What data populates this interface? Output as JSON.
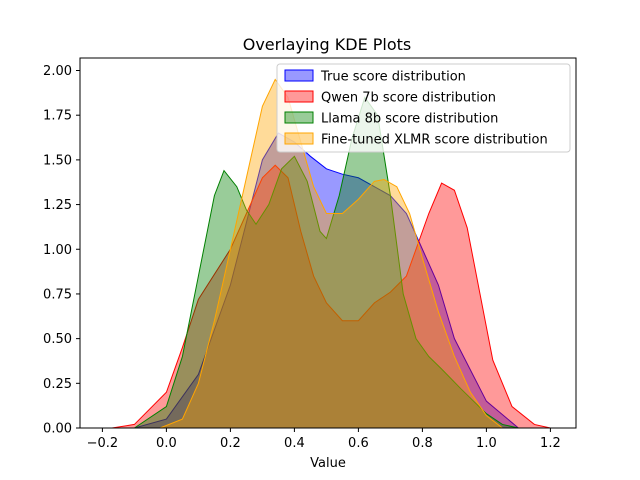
{
  "chart_data": {
    "type": "area",
    "title": "Overlaying KDE Plots",
    "xlabel": "Value",
    "ylabel": "",
    "xlim": [
      -0.27,
      1.28
    ],
    "ylim": [
      0,
      2.07
    ],
    "xticks": [
      "−0.2",
      "0.0",
      "0.2",
      "0.4",
      "0.6",
      "0.8",
      "1.0",
      "1.2"
    ],
    "xtick_values": [
      -0.2,
      0.0,
      0.2,
      0.4,
      0.6,
      0.8,
      1.0,
      1.2
    ],
    "yticks": [
      "0.00",
      "0.25",
      "0.50",
      "0.75",
      "1.00",
      "1.25",
      "1.50",
      "1.75",
      "2.00"
    ],
    "ytick_values": [
      0,
      0.25,
      0.5,
      0.75,
      1.0,
      1.25,
      1.5,
      1.75,
      2.0
    ],
    "grid": false,
    "legend_position": "top-right",
    "series": [
      {
        "name": "True score distribution",
        "fill": "#0000ff",
        "edge": "#0000ff",
        "points": [
          [
            -0.1,
            0
          ],
          [
            0,
            0.05
          ],
          [
            0.1,
            0.3
          ],
          [
            0.2,
            0.8
          ],
          [
            0.25,
            1.15
          ],
          [
            0.3,
            1.5
          ],
          [
            0.35,
            1.65
          ],
          [
            0.4,
            1.6
          ],
          [
            0.45,
            1.52
          ],
          [
            0.5,
            1.45
          ],
          [
            0.55,
            1.42
          ],
          [
            0.6,
            1.4
          ],
          [
            0.65,
            1.35
          ],
          [
            0.7,
            1.3
          ],
          [
            0.75,
            1.2
          ],
          [
            0.8,
            1.0
          ],
          [
            0.85,
            0.8
          ],
          [
            0.9,
            0.5
          ],
          [
            1.0,
            0.15
          ],
          [
            1.1,
            0
          ]
        ]
      },
      {
        "name": "Qwen 7b score distribution",
        "fill": "#ff0000",
        "edge": "#ff0000",
        "points": [
          [
            -0.17,
            0
          ],
          [
            -0.1,
            0.02
          ],
          [
            0,
            0.2
          ],
          [
            0.05,
            0.45
          ],
          [
            0.1,
            0.72
          ],
          [
            0.2,
            1.0
          ],
          [
            0.25,
            1.2
          ],
          [
            0.3,
            1.4
          ],
          [
            0.34,
            1.47
          ],
          [
            0.38,
            1.4
          ],
          [
            0.42,
            1.1
          ],
          [
            0.46,
            0.85
          ],
          [
            0.5,
            0.7
          ],
          [
            0.55,
            0.6
          ],
          [
            0.6,
            0.6
          ],
          [
            0.65,
            0.7
          ],
          [
            0.7,
            0.76
          ],
          [
            0.75,
            0.85
          ],
          [
            0.78,
            1.0
          ],
          [
            0.82,
            1.2
          ],
          [
            0.86,
            1.37
          ],
          [
            0.9,
            1.33
          ],
          [
            0.94,
            1.12
          ],
          [
            0.98,
            0.75
          ],
          [
            1.02,
            0.38
          ],
          [
            1.08,
            0.12
          ],
          [
            1.15,
            0.02
          ],
          [
            1.2,
            0
          ]
        ]
      },
      {
        "name": "Llama 8b score distribution",
        "fill": "#008000",
        "edge": "#008000",
        "points": [
          [
            -0.1,
            0
          ],
          [
            0,
            0.12
          ],
          [
            0.05,
            0.4
          ],
          [
            0.1,
            0.85
          ],
          [
            0.15,
            1.3
          ],
          [
            0.18,
            1.44
          ],
          [
            0.22,
            1.35
          ],
          [
            0.25,
            1.22
          ],
          [
            0.28,
            1.14
          ],
          [
            0.32,
            1.25
          ],
          [
            0.36,
            1.45
          ],
          [
            0.4,
            1.52
          ],
          [
            0.44,
            1.38
          ],
          [
            0.48,
            1.1
          ],
          [
            0.5,
            1.06
          ],
          [
            0.54,
            1.3
          ],
          [
            0.58,
            1.62
          ],
          [
            0.62,
            1.85
          ],
          [
            0.66,
            1.75
          ],
          [
            0.7,
            1.3
          ],
          [
            0.74,
            0.75
          ],
          [
            0.78,
            0.5
          ],
          [
            0.82,
            0.4
          ],
          [
            0.86,
            0.33
          ],
          [
            0.92,
            0.22
          ],
          [
            1.0,
            0.08
          ],
          [
            1.05,
            0.02
          ],
          [
            1.1,
            0
          ]
        ]
      },
      {
        "name": "Fine-tuned XLMR score distribution",
        "fill": "#ffa500",
        "edge": "#ffa500",
        "points": [
          [
            -0.02,
            0
          ],
          [
            0.05,
            0.05
          ],
          [
            0.1,
            0.25
          ],
          [
            0.15,
            0.6
          ],
          [
            0.2,
            1.0
          ],
          [
            0.25,
            1.4
          ],
          [
            0.3,
            1.8
          ],
          [
            0.34,
            1.95
          ],
          [
            0.38,
            1.85
          ],
          [
            0.42,
            1.6
          ],
          [
            0.46,
            1.35
          ],
          [
            0.5,
            1.2
          ],
          [
            0.55,
            1.2
          ],
          [
            0.6,
            1.28
          ],
          [
            0.65,
            1.38
          ],
          [
            0.68,
            1.39
          ],
          [
            0.72,
            1.35
          ],
          [
            0.76,
            1.2
          ],
          [
            0.8,
            0.95
          ],
          [
            0.85,
            0.65
          ],
          [
            0.9,
            0.4
          ],
          [
            0.95,
            0.2
          ],
          [
            1.0,
            0.07
          ],
          [
            1.05,
            0
          ]
        ]
      }
    ]
  }
}
